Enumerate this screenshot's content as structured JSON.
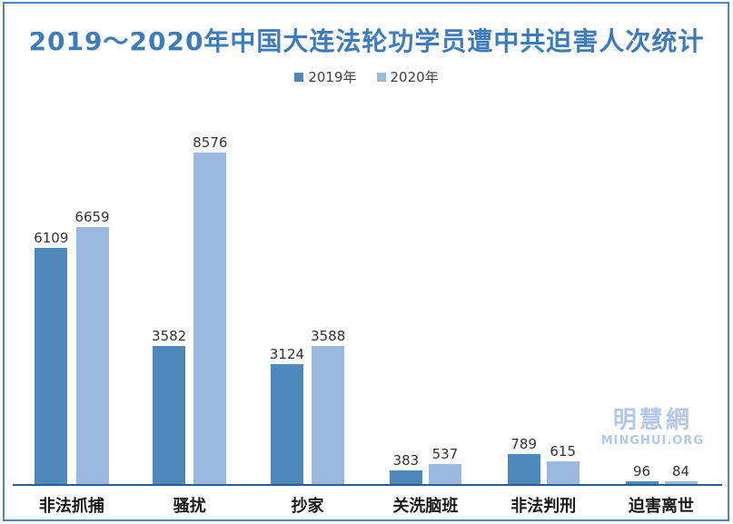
{
  "frame": {
    "border_color": "#4e86b8"
  },
  "title": {
    "text": "2019～2020年中国大连法轮功学员遭中共迫害人次统计",
    "color": "#3e7bba"
  },
  "legend": {
    "items": [
      {
        "label": "2019年",
        "color": "#4f89bb"
      },
      {
        "label": "2020年",
        "color": "#9bb9de"
      }
    ]
  },
  "watermark": {
    "logo": "明慧網",
    "url": "MINGHUI.ORG",
    "color": "#b3c8e6"
  },
  "chart_data": {
    "type": "bar",
    "title": "2019～2020年中国大连法轮功学员遭中共迫害人次统计",
    "categories": [
      "非法抓捕",
      "骚扰",
      "抄家",
      "关洗脑班",
      "非法判刑",
      "迫害离世"
    ],
    "series": [
      {
        "name": "2019年",
        "color": "#4f89bb",
        "values": [
          6109,
          3582,
          3124,
          383,
          789,
          96
        ]
      },
      {
        "name": "2020年",
        "color": "#9bb9de",
        "values": [
          6659,
          8576,
          3588,
          537,
          615,
          84
        ]
      }
    ],
    "value_labels": true,
    "xlabel": "",
    "ylabel": "",
    "ylim": [
      0,
      8576
    ],
    "grid": false,
    "legend_position": "top",
    "axis_color": "#2b5d8e"
  }
}
